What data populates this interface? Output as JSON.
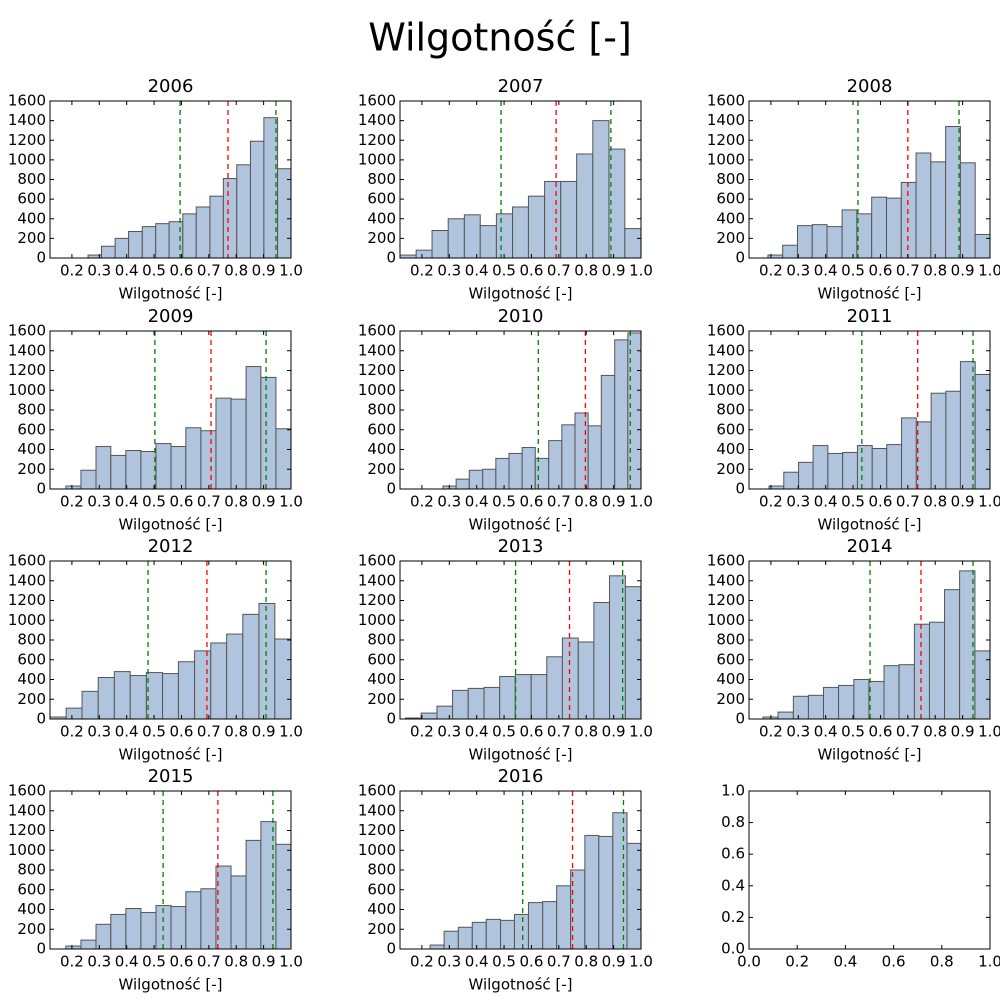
{
  "title": "Wilgotność [-]",
  "chart_data": [
    {
      "type": "histogram",
      "title": "2006",
      "xlabel": "Wilgotność [-]",
      "color": "#b0c4de",
      "bins": [
        0.259,
        0.308,
        0.358,
        0.407,
        0.457,
        0.506,
        0.555,
        0.605,
        0.654,
        0.704,
        0.753,
        0.802,
        0.852,
        0.901,
        0.951,
        1.0
      ],
      "values": [
        30,
        120,
        200,
        270,
        320,
        350,
        370,
        450,
        520,
        630,
        810,
        950,
        1190,
        1430,
        910
      ],
      "vlines": [
        {
          "x": 0.595,
          "color": "#008000"
        },
        {
          "x": 0.77,
          "color": "#ff0000"
        },
        {
          "x": 0.945,
          "color": "#008000"
        }
      ],
      "xlim": [
        0.12,
        1.0
      ],
      "ylim": [
        0,
        1600
      ],
      "xticks": [
        0.2,
        0.3,
        0.4,
        0.5,
        0.6,
        0.7,
        0.8,
        0.9,
        {
          "value": 1,
          "label": "1.0"
        }
      ],
      "yticks": [
        0,
        200,
        400,
        600,
        800,
        1000,
        1200,
        1400,
        1600
      ]
    },
    {
      "type": "histogram",
      "title": "2007",
      "xlabel": "Wilgotność [-]",
      "color": "#b0c4de",
      "bins": [
        0.12,
        0.179,
        0.237,
        0.296,
        0.355,
        0.413,
        0.472,
        0.531,
        0.589,
        0.648,
        0.707,
        0.765,
        0.824,
        0.883,
        0.941,
        1.0
      ],
      "values": [
        30,
        80,
        280,
        400,
        440,
        330,
        450,
        520,
        630,
        780,
        780,
        1060,
        1400,
        1110,
        300
      ],
      "vlines": [
        {
          "x": 0.489,
          "color": "#008000"
        },
        {
          "x": 0.69,
          "color": "#ff0000"
        },
        {
          "x": 0.89,
          "color": "#008000"
        }
      ],
      "xlim": [
        0.12,
        1.0
      ],
      "ylim": [
        0,
        1600
      ],
      "xticks": [
        0.2,
        0.3,
        0.4,
        0.5,
        0.6,
        0.7,
        0.8,
        0.9,
        {
          "value": 1,
          "label": "1.0"
        }
      ],
      "yticks": [
        0,
        200,
        400,
        600,
        800,
        1000,
        1200,
        1400,
        1600
      ]
    },
    {
      "type": "histogram",
      "title": "2008",
      "xlabel": "Wilgotność [-]",
      "color": "#b0c4de",
      "bins": [
        0.189,
        0.243,
        0.297,
        0.351,
        0.405,
        0.46,
        0.514,
        0.568,
        0.622,
        0.676,
        0.73,
        0.784,
        0.838,
        0.892,
        0.946,
        1.0
      ],
      "values": [
        30,
        130,
        330,
        340,
        320,
        490,
        450,
        620,
        610,
        770,
        1070,
        980,
        1340,
        970,
        240
      ],
      "vlines": [
        {
          "x": 0.518,
          "color": "#008000"
        },
        {
          "x": 0.7,
          "color": "#ff0000"
        },
        {
          "x": 0.887,
          "color": "#008000"
        }
      ],
      "xlim": [
        0.12,
        1.0
      ],
      "ylim": [
        0,
        1600
      ],
      "xticks": [
        0.2,
        0.3,
        0.4,
        0.5,
        0.6,
        0.7,
        0.8,
        0.9,
        {
          "value": 1,
          "label": "1.0"
        }
      ],
      "yticks": [
        0,
        200,
        400,
        600,
        800,
        1000,
        1200,
        1400,
        1600
      ]
    },
    {
      "type": "histogram",
      "title": "2009",
      "xlabel": "Wilgotność [-]",
      "color": "#b0c4de",
      "bins": [
        0.178,
        0.233,
        0.288,
        0.342,
        0.397,
        0.452,
        0.507,
        0.562,
        0.616,
        0.671,
        0.726,
        0.781,
        0.836,
        0.89,
        0.945,
        1.0
      ],
      "values": [
        30,
        190,
        430,
        340,
        390,
        380,
        460,
        430,
        620,
        590,
        920,
        910,
        1240,
        1130,
        610
      ],
      "vlines": [
        {
          "x": 0.503,
          "color": "#008000"
        },
        {
          "x": 0.708,
          "color": "#ff0000"
        },
        {
          "x": 0.909,
          "color": "#008000"
        }
      ],
      "xlim": [
        0.12,
        1.0
      ],
      "ylim": [
        0,
        1600
      ],
      "xticks": [
        0.2,
        0.3,
        0.4,
        0.5,
        0.6,
        0.7,
        0.8,
        0.9,
        {
          "value": 1,
          "label": "1.0"
        }
      ],
      "yticks": [
        0,
        200,
        400,
        600,
        800,
        1000,
        1200,
        1400,
        1600
      ]
    },
    {
      "type": "histogram",
      "title": "2010",
      "xlabel": "Wilgotność [-]",
      "color": "#b0c4de",
      "bins": [
        0.277,
        0.325,
        0.373,
        0.422,
        0.47,
        0.518,
        0.566,
        0.614,
        0.663,
        0.711,
        0.759,
        0.807,
        0.855,
        0.904,
        0.952,
        1.0
      ],
      "values": [
        30,
        100,
        190,
        200,
        310,
        360,
        420,
        310,
        490,
        650,
        770,
        640,
        1150,
        1510,
        1580
      ],
      "vlines": [
        {
          "x": 0.625,
          "color": "#008000"
        },
        {
          "x": 0.797,
          "color": "#ff0000"
        },
        {
          "x": 0.961,
          "color": "#008000"
        }
      ],
      "xlim": [
        0.12,
        1.0
      ],
      "ylim": [
        0,
        1600
      ],
      "xticks": [
        0.2,
        0.3,
        0.4,
        0.5,
        0.6,
        0.7,
        0.8,
        0.9,
        {
          "value": 1,
          "label": "1.0"
        }
      ],
      "yticks": [
        0,
        200,
        400,
        600,
        800,
        1000,
        1200,
        1400,
        1600
      ]
    },
    {
      "type": "histogram",
      "title": "2011",
      "xlabel": "Wilgotność [-]",
      "color": "#b0c4de",
      "bins": [
        0.193,
        0.247,
        0.301,
        0.354,
        0.408,
        0.462,
        0.516,
        0.57,
        0.623,
        0.677,
        0.731,
        0.785,
        0.839,
        0.892,
        0.946,
        1.0
      ],
      "values": [
        30,
        170,
        270,
        440,
        360,
        370,
        440,
        410,
        450,
        720,
        680,
        970,
        990,
        1290,
        1160
      ],
      "vlines": [
        {
          "x": 0.532,
          "color": "#008000"
        },
        {
          "x": 0.736,
          "color": "#ff0000"
        },
        {
          "x": 0.938,
          "color": "#008000"
        }
      ],
      "xlim": [
        0.12,
        1.0
      ],
      "ylim": [
        0,
        1600
      ],
      "xticks": [
        0.2,
        0.3,
        0.4,
        0.5,
        0.6,
        0.7,
        0.8,
        0.9,
        {
          "value": 1,
          "label": "1.0"
        }
      ],
      "yticks": [
        0,
        200,
        400,
        600,
        800,
        1000,
        1200,
        1400,
        1600
      ]
    },
    {
      "type": "histogram",
      "title": "2012",
      "xlabel": "Wilgotność [-]",
      "color": "#b0c4de",
      "bins": [
        0.12,
        0.179,
        0.237,
        0.296,
        0.355,
        0.413,
        0.472,
        0.531,
        0.589,
        0.648,
        0.707,
        0.765,
        0.824,
        0.883,
        0.941,
        1.0
      ],
      "values": [
        20,
        110,
        280,
        420,
        480,
        440,
        470,
        460,
        580,
        690,
        770,
        860,
        1060,
        1170,
        810
      ],
      "vlines": [
        {
          "x": 0.478,
          "color": "#008000"
        },
        {
          "x": 0.693,
          "color": "#ff0000"
        },
        {
          "x": 0.909,
          "color": "#008000"
        }
      ],
      "xlim": [
        0.12,
        1.0
      ],
      "ylim": [
        0,
        1600
      ],
      "xticks": [
        0.2,
        0.3,
        0.4,
        0.5,
        0.6,
        0.7,
        0.8,
        0.9,
        {
          "value": 1,
          "label": "1.0"
        }
      ],
      "yticks": [
        0,
        200,
        400,
        600,
        800,
        1000,
        1200,
        1400,
        1600
      ]
    },
    {
      "type": "histogram",
      "title": "2013",
      "xlabel": "Wilgotność [-]",
      "color": "#b0c4de",
      "bins": [
        0.14,
        0.197,
        0.255,
        0.312,
        0.369,
        0.427,
        0.484,
        0.541,
        0.599,
        0.656,
        0.713,
        0.771,
        0.828,
        0.885,
        0.943,
        1.0
      ],
      "values": [
        10,
        60,
        130,
        290,
        310,
        320,
        430,
        450,
        450,
        630,
        820,
        780,
        1180,
        1450,
        1340
      ],
      "vlines": [
        {
          "x": 0.542,
          "color": "#008000"
        },
        {
          "x": 0.739,
          "color": "#ff0000"
        },
        {
          "x": 0.933,
          "color": "#008000"
        }
      ],
      "xlim": [
        0.12,
        1.0
      ],
      "ylim": [
        0,
        1600
      ],
      "xticks": [
        0.2,
        0.3,
        0.4,
        0.5,
        0.6,
        0.7,
        0.8,
        0.9,
        {
          "value": 1,
          "label": "1.0"
        }
      ],
      "yticks": [
        0,
        200,
        400,
        600,
        800,
        1000,
        1200,
        1400,
        1600
      ]
    },
    {
      "type": "histogram",
      "title": "2014",
      "xlabel": "Wilgotność [-]",
      "color": "#b0c4de",
      "bins": [
        0.171,
        0.226,
        0.282,
        0.337,
        0.392,
        0.447,
        0.503,
        0.558,
        0.613,
        0.668,
        0.724,
        0.779,
        0.834,
        0.889,
        0.945,
        1.0
      ],
      "values": [
        20,
        70,
        230,
        240,
        320,
        340,
        400,
        380,
        540,
        550,
        960,
        980,
        1310,
        1500,
        690
      ],
      "vlines": [
        {
          "x": 0.562,
          "color": "#008000"
        },
        {
          "x": 0.748,
          "color": "#ff0000"
        },
        {
          "x": 0.938,
          "color": "#008000"
        }
      ],
      "xlim": [
        0.12,
        1.0
      ],
      "ylim": [
        0,
        1600
      ],
      "xticks": [
        0.2,
        0.3,
        0.4,
        0.5,
        0.6,
        0.7,
        0.8,
        0.9,
        {
          "value": 1,
          "label": "1.0"
        }
      ],
      "yticks": [
        0,
        200,
        400,
        600,
        800,
        1000,
        1200,
        1400,
        1600
      ]
    },
    {
      "type": "histogram",
      "title": "2015",
      "xlabel": "Wilgotność [-]",
      "color": "#b0c4de",
      "bins": [
        0.178,
        0.233,
        0.288,
        0.342,
        0.397,
        0.452,
        0.507,
        0.562,
        0.616,
        0.671,
        0.726,
        0.781,
        0.836,
        0.89,
        0.945,
        1.0
      ],
      "values": [
        30,
        90,
        250,
        350,
        410,
        370,
        440,
        430,
        580,
        610,
        840,
        740,
        1100,
        1290,
        1060
      ],
      "vlines": [
        {
          "x": 0.533,
          "color": "#008000"
        },
        {
          "x": 0.733,
          "color": "#ff0000"
        },
        {
          "x": 0.934,
          "color": "#008000"
        }
      ],
      "xlim": [
        0.12,
        1.0
      ],
      "ylim": [
        0,
        1600
      ],
      "xticks": [
        0.2,
        0.3,
        0.4,
        0.5,
        0.6,
        0.7,
        0.8,
        0.9,
        {
          "value": 1,
          "label": "1.0"
        }
      ],
      "yticks": [
        0,
        200,
        400,
        600,
        800,
        1000,
        1200,
        1400,
        1600
      ]
    },
    {
      "type": "histogram",
      "title": "2016",
      "xlabel": "Wilgotność [-]",
      "color": "#b0c4de",
      "bins": [
        0.23,
        0.281,
        0.333,
        0.384,
        0.435,
        0.487,
        0.538,
        0.589,
        0.641,
        0.692,
        0.743,
        0.795,
        0.846,
        0.897,
        0.949,
        1.0
      ],
      "values": [
        40,
        180,
        220,
        270,
        300,
        290,
        350,
        470,
        480,
        640,
        800,
        1150,
        1140,
        1380,
        1070
      ],
      "vlines": [
        {
          "x": 0.568,
          "color": "#008000"
        },
        {
          "x": 0.75,
          "color": "#ff0000"
        },
        {
          "x": 0.936,
          "color": "#008000"
        }
      ],
      "xlim": [
        0.12,
        1.0
      ],
      "ylim": [
        0,
        1600
      ],
      "xticks": [
        0.2,
        0.3,
        0.4,
        0.5,
        0.6,
        0.7,
        0.8,
        0.9,
        {
          "value": 1,
          "label": "1.0"
        }
      ],
      "yticks": [
        0,
        200,
        400,
        600,
        800,
        1000,
        1200,
        1400,
        1600
      ]
    },
    {
      "type": "empty",
      "xlim": [
        0,
        1
      ],
      "ylim": [
        0,
        1
      ],
      "xticks": [
        {
          "value": 0,
          "label": "0.0"
        },
        0.2,
        0.4,
        0.6,
        0.8,
        {
          "value": 1,
          "label": "1.0"
        }
      ],
      "yticks": [
        {
          "value": 0,
          "label": "0.0"
        },
        0.2,
        0.4,
        0.6,
        0.8,
        {
          "value": 1,
          "label": "1.0"
        }
      ]
    }
  ]
}
